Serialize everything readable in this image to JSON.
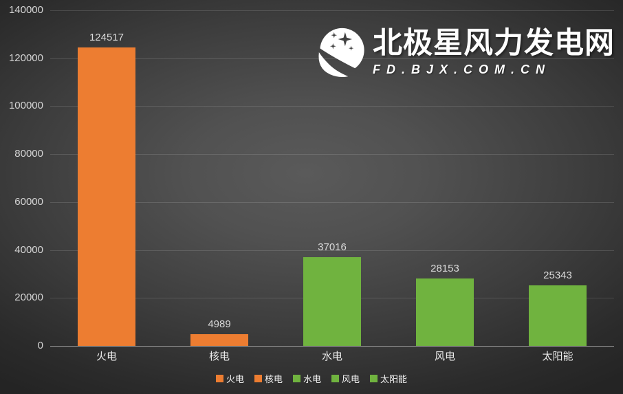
{
  "watermark": {
    "title": "北极星风力发电网",
    "subtitle": "FD.BJX.COM.CN"
  },
  "chart_data": {
    "type": "bar",
    "title": "",
    "categories": [
      "火电",
      "核电",
      "水电",
      "风电",
      "太阳能"
    ],
    "values": [
      124517,
      4989,
      37016,
      28153,
      25343
    ],
    "bar_colors": [
      "#ED7D31",
      "#ED7D31",
      "#70B33F",
      "#70B33F",
      "#70B33F"
    ],
    "data_labels": [
      124517,
      4989,
      37016,
      28153,
      25343
    ],
    "ylim": [
      0,
      140000
    ],
    "yticks": [
      0,
      20000,
      40000,
      60000,
      80000,
      100000,
      120000,
      140000
    ],
    "grid": true,
    "legend_position": "bottom",
    "legend": [
      {
        "label": "火电",
        "color": "#ED7D31"
      },
      {
        "label": "核电",
        "color": "#ED7D31"
      },
      {
        "label": "水电",
        "color": "#70B33F"
      },
      {
        "label": "风电",
        "color": "#70B33F"
      },
      {
        "label": "太阳能",
        "color": "#70B33F"
      }
    ]
  }
}
